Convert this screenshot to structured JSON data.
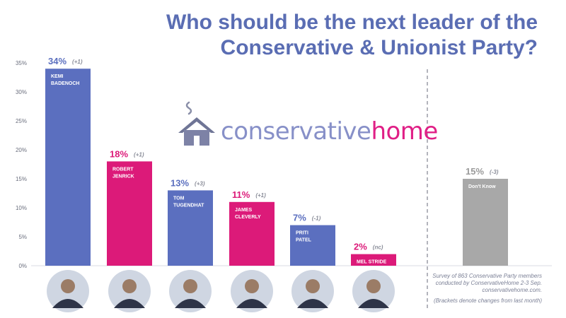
{
  "title_line1": "Who should be the next leader of the",
  "title_line2": "Conservative & Unionist Party?",
  "logo": {
    "word1": "conservative",
    "word2": "home"
  },
  "notes": {
    "survey_line1": "Survey of 863 Conservative Party members",
    "survey_line2": "conducted by ConservativeHome 2-3 Sep.",
    "survey_line3": "conservativehome.com.",
    "brackets": "(Brackets denote changes from last month)"
  },
  "colors": {
    "blue": "#5b6fbf",
    "pink": "#dc1a79",
    "grey": "#a8a8a8",
    "title": "#5a6db3",
    "axis": "#6b6f7e"
  },
  "chart_data": {
    "type": "bar",
    "title": "Who should be the next leader of the Conservative & Unionist Party?",
    "xlabel": "",
    "ylabel": "",
    "ylim": [
      0,
      35
    ],
    "yticks": [
      "0%",
      "5%",
      "10%",
      "15%",
      "20%",
      "25%",
      "30%",
      "35%"
    ],
    "grid": false,
    "legend": "none",
    "bars": [
      {
        "label_line1": "KEMI",
        "label_line2": "BADENOCH",
        "value": 34,
        "pct": "34%",
        "change": "(+1)",
        "color": "blue",
        "photo": "portrait-icon"
      },
      {
        "label_line1": "ROBERT",
        "label_line2": "JENRICK",
        "value": 18,
        "pct": "18%",
        "change": "(+1)",
        "color": "pink",
        "photo": "portrait-icon"
      },
      {
        "label_line1": "TOM",
        "label_line2": "TUGENDHAT",
        "value": 13,
        "pct": "13%",
        "change": "(+3)",
        "color": "blue",
        "photo": "portrait-icon"
      },
      {
        "label_line1": "JAMES",
        "label_line2": "CLEVERLY",
        "value": 11,
        "pct": "11%",
        "change": "(+1)",
        "color": "pink",
        "photo": "portrait-icon"
      },
      {
        "label_line1": "PRITI",
        "label_line2": "PATEL",
        "value": 7,
        "pct": "7%",
        "change": "(-1)",
        "color": "blue",
        "photo": "portrait-icon"
      },
      {
        "label_line1": "MEL STRIDE",
        "label_line2": "",
        "value": 2,
        "pct": "2%",
        "change": "(nc)",
        "color": "pink",
        "photo": "portrait-icon"
      },
      {
        "label_line1": "Don't Know",
        "label_line2": "",
        "value": 15,
        "pct": "15%",
        "change": "(-3)",
        "color": "grey",
        "photo": ""
      }
    ]
  }
}
